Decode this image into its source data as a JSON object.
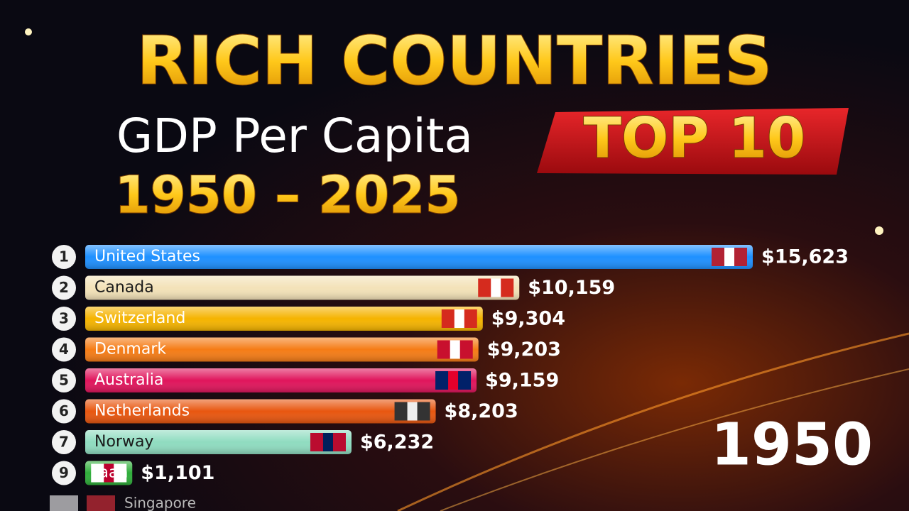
{
  "chart_data": {
    "type": "bar",
    "title": "RICH COUNTRIES",
    "subtitle": "GDP Per Capita",
    "badge": "TOP 10",
    "period": "1950 – 2025",
    "year": "1950",
    "ranks": [
      "1",
      "2",
      "3",
      "4",
      "5",
      "6",
      "7",
      "9",
      null
    ],
    "categories": [
      "United States",
      "Canada",
      "Switzerland",
      "Denmark",
      "Australia",
      "Netherlands",
      "Norway",
      "Jaan",
      "Singapore"
    ],
    "values": [
      15623,
      10159,
      9304,
      9203,
      9159,
      8203,
      6232,
      1101,
      null
    ],
    "value_labels": [
      "$15,623",
      "$10,159",
      "$9,304",
      "$9,203",
      "$9,159",
      "$8,203",
      "$6,232",
      "$1,101",
      null
    ],
    "colors": [
      "#1e90ff",
      "#f3e2b8",
      "#f5b400",
      "#f57c16",
      "#e0155c",
      "#e8560f",
      "#8fdcc0",
      "#2fae3a",
      "#b9b0b0"
    ]
  }
}
